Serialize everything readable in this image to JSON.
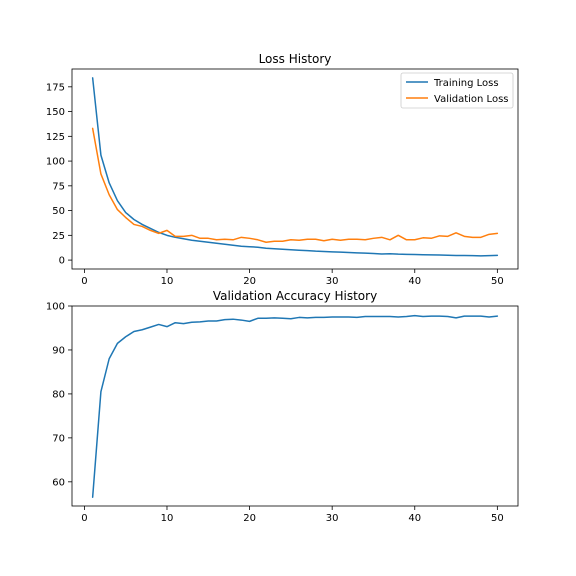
{
  "chart_data": [
    {
      "type": "line",
      "title": "Loss History",
      "xlabel": "",
      "ylabel": "",
      "xlim": [
        -1.5,
        52.5
      ],
      "ylim": [
        -9,
        193
      ],
      "xticks": [
        0,
        10,
        20,
        30,
        40,
        50
      ],
      "yticks": [
        0,
        25,
        50,
        75,
        100,
        125,
        150,
        175
      ],
      "grid": false,
      "legend": "top-right",
      "x": [
        1,
        2,
        3,
        4,
        5,
        6,
        7,
        8,
        9,
        10,
        11,
        12,
        13,
        14,
        15,
        16,
        17,
        18,
        19,
        20,
        21,
        22,
        23,
        24,
        25,
        26,
        27,
        28,
        29,
        30,
        31,
        32,
        33,
        34,
        35,
        36,
        37,
        38,
        39,
        40,
        41,
        42,
        43,
        44,
        45,
        46,
        47,
        48,
        49,
        50
      ],
      "series": [
        {
          "name": "Training Loss",
          "color": "#1f77b4",
          "values": [
            184,
            106,
            78,
            60,
            48,
            41,
            36,
            32,
            28,
            25,
            23,
            21.5,
            20,
            19,
            18,
            17,
            16,
            15,
            14,
            13.5,
            13,
            12,
            11.5,
            11,
            10.5,
            10,
            9.5,
            9,
            8.7,
            8.3,
            8,
            7.6,
            7.3,
            7,
            6.6,
            6.2,
            6.4,
            6,
            5.8,
            5.6,
            5.4,
            5.3,
            5.1,
            4.9,
            4.7,
            4.6,
            4.5,
            4.3,
            4.5,
            4.8
          ]
        },
        {
          "name": "Validation Loss",
          "color": "#ff7f0e",
          "values": [
            133,
            87,
            66,
            51,
            43,
            36,
            34,
            30,
            27,
            30,
            24,
            24,
            25,
            22,
            22,
            20.5,
            21,
            20.5,
            23,
            22,
            20.5,
            18,
            19,
            19,
            20.5,
            20,
            21,
            21,
            19.5,
            21,
            20,
            21,
            21,
            20.5,
            22,
            23,
            20.5,
            25,
            20.5,
            20.5,
            22.5,
            22,
            24.5,
            24,
            27.5,
            24,
            23,
            23,
            26,
            27
          ]
        }
      ]
    },
    {
      "type": "line",
      "title": "Validation Accuracy History",
      "xlabel": "",
      "ylabel": "",
      "xlim": [
        -1.5,
        52.5
      ],
      "ylim": [
        54.5,
        100
      ],
      "xticks": [
        0,
        10,
        20,
        30,
        40,
        50
      ],
      "yticks": [
        60,
        70,
        80,
        90,
        100
      ],
      "grid": false,
      "x": [
        1,
        2,
        3,
        4,
        5,
        6,
        7,
        8,
        9,
        10,
        11,
        12,
        13,
        14,
        15,
        16,
        17,
        18,
        19,
        20,
        21,
        22,
        23,
        24,
        25,
        26,
        27,
        28,
        29,
        30,
        31,
        32,
        33,
        34,
        35,
        36,
        37,
        38,
        39,
        40,
        41,
        42,
        43,
        44,
        45,
        46,
        47,
        48,
        49,
        50
      ],
      "series": [
        {
          "color": "#1f77b4",
          "values": [
            56.5,
            80.5,
            88,
            91.5,
            93,
            94.2,
            94.6,
            95.2,
            95.8,
            95.3,
            96.2,
            96,
            96.3,
            96.4,
            96.6,
            96.6,
            96.9,
            97,
            96.8,
            96.5,
            97.2,
            97.2,
            97.3,
            97.2,
            97.1,
            97.4,
            97.3,
            97.4,
            97.4,
            97.5,
            97.5,
            97.5,
            97.4,
            97.6,
            97.6,
            97.6,
            97.6,
            97.5,
            97.6,
            97.8,
            97.6,
            97.7,
            97.7,
            97.6,
            97.3,
            97.7,
            97.7,
            97.7,
            97.5,
            97.7
          ]
        }
      ]
    }
  ]
}
